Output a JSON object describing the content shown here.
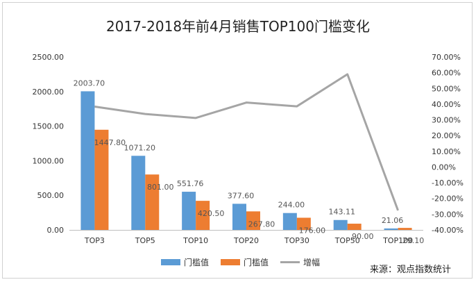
{
  "chart_data": {
    "type": "bar",
    "title": "2017-2018年前4月销售TOP100门槛变化",
    "categories": [
      "TOP3",
      "TOP5",
      "TOP10",
      "TOP20",
      "TOP30",
      "TOP50",
      "TOP100"
    ],
    "series": [
      {
        "name": "门槛值",
        "type": "bar",
        "axis": "left",
        "color": "#5b9bd5",
        "values": [
          2003.7,
          1071.2,
          551.76,
          377.6,
          244.0,
          143.11,
          21.06
        ]
      },
      {
        "name": "门槛值",
        "type": "bar",
        "axis": "left",
        "color": "#ed7d31",
        "values": [
          1447.8,
          801.0,
          420.5,
          267.8,
          176.0,
          90.0,
          29.1
        ]
      },
      {
        "name": "增幅",
        "type": "line",
        "axis": "right",
        "color": "#a5a5a5",
        "values": [
          0.384,
          0.337,
          0.312,
          0.41,
          0.386,
          0.59,
          -0.276
        ]
      }
    ],
    "data_labels": {
      "0": [
        "2003.70",
        "1071.20",
        "551.76",
        "377.60",
        "244.00",
        "143.11",
        "21.06"
      ],
      "1": [
        "1447.80",
        "801.00",
        "420.50",
        "267.80",
        "176.00",
        "90.00",
        "29.10"
      ]
    },
    "y_left": {
      "min": 0,
      "max": 2500,
      "step": 500,
      "ticks": [
        "0.00",
        "500.00",
        "1000.00",
        "1500.00",
        "2000.00",
        "2500.00"
      ]
    },
    "y_right": {
      "min": -0.4,
      "max": 0.7,
      "step": 0.1,
      "ticks": [
        "-40.00%",
        "-30.00%",
        "-20.00%",
        "-10.00%",
        "0.00%",
        "10.00%",
        "20.00%",
        "30.00%",
        "40.00%",
        "50.00%",
        "60.00%",
        "70.00%"
      ]
    },
    "grid": false,
    "legend_position": "bottom"
  },
  "source_note": "来源：观点指数统计"
}
